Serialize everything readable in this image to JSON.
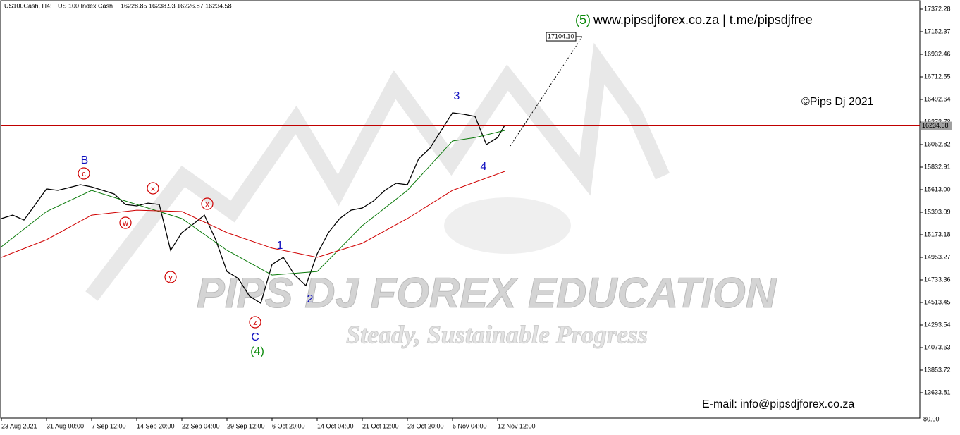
{
  "chart_data": {
    "type": "line",
    "header": {
      "symbol": "US100Cash, H4:",
      "description": "US 100 Index Cash",
      "ohlc": "16228.85 16238.93 16226.87 16234.58"
    },
    "site_prefix": "(5)",
    "site": "www.pipsdjforex.co.za | t.me/pipsdjfree",
    "copyright": "©Pips Dj 2021",
    "email": "E-mail: info@pipsdjforex.co.za",
    "watermark": {
      "title": "PIPS DJ FOREX EDUCATION",
      "slogan": "Steady, Sustainable Progress"
    },
    "indicator_label": "80.00",
    "annotations": [
      "B",
      "c",
      "x",
      "w",
      "y",
      "x",
      "z",
      "C",
      "(4)",
      "1",
      "2",
      "3",
      "4"
    ],
    "current_price": {
      "value": 16234.58,
      "label": "16234.58",
      "color": "#c00000"
    },
    "target": {
      "value": 17104.1,
      "label": "17104.10"
    },
    "series": [
      {
        "color": "#000000",
        "x": [
          0,
          0.25,
          0.5,
          0.75,
          1,
          1.25,
          1.5,
          1.75,
          2,
          2.25,
          2.5,
          2.75,
          3,
          3.25,
          3.5,
          3.75,
          4,
          4.25,
          4.5,
          4.75,
          5,
          5.25,
          5.5,
          5.75,
          6,
          6.25,
          6.5,
          6.75,
          7,
          7.25,
          7.5,
          7.75,
          8,
          8.25,
          8.5,
          8.75,
          9,
          9.25,
          9.5,
          9.75,
          10,
          10.25,
          10.5,
          10.75,
          11,
          11.15
        ],
        "values": [
          15331,
          15365,
          15317,
          15468,
          15620,
          15606,
          15633,
          15661,
          15640,
          15606,
          15571,
          15468,
          15455,
          15482,
          15468,
          15022,
          15194,
          15276,
          15365,
          15125,
          14815,
          14747,
          14575,
          14506,
          14884,
          14953,
          14781,
          14678,
          14987,
          15194,
          15331,
          15413,
          15434,
          15503,
          15606,
          15675,
          15661,
          15915,
          16018,
          16190,
          16362,
          16348,
          16327,
          16053,
          16121,
          16234.58
        ]
      },
      {
        "color": "#0a7a0a",
        "x": [
          0,
          1,
          2,
          3,
          4,
          5,
          6,
          7,
          8,
          9,
          10,
          10.5,
          11.16
        ],
        "values": [
          15056,
          15400,
          15606,
          15468,
          15331,
          15022,
          14781,
          14815,
          15262,
          15606,
          16087,
          16121,
          16190
        ]
      },
      {
        "color": "#d00000",
        "x": [
          0,
          1,
          2,
          3,
          4,
          5,
          6,
          7,
          8,
          9,
          10,
          11.16
        ],
        "values": [
          14953,
          15125,
          15365,
          15413,
          15400,
          15194,
          15043,
          14953,
          15091,
          15331,
          15606,
          15792
        ]
      }
    ],
    "xlim": [
      0,
      20.36
    ],
    "ylim": [
      13386.4,
      17461.6
    ],
    "xticks": [
      {
        "value": 0,
        "label": "23 Aug 2021"
      },
      {
        "value": 1,
        "label": "31 Aug 00:00"
      },
      {
        "value": 2,
        "label": "7 Sep 12:00"
      },
      {
        "value": 3,
        "label": "14 Sep 20:00"
      },
      {
        "value": 4,
        "label": "22 Sep 04:00"
      },
      {
        "value": 5,
        "label": "29 Sep 12:00"
      },
      {
        "value": 6,
        "label": "6 Oct 20:00"
      },
      {
        "value": 7,
        "label": "14 Oct 04:00"
      },
      {
        "value": 8,
        "label": "21 Oct 12:00"
      },
      {
        "value": 9,
        "label": "28 Oct 20:00"
      },
      {
        "value": 10,
        "label": "5 Nov 04:00"
      },
      {
        "value": 11,
        "label": "12 Nov 12:00"
      }
    ],
    "yticks": [
      17372.28,
      17152.37,
      16932.46,
      16712.55,
      16492.64,
      16272.73,
      16052.82,
      15832.91,
      {
        "value": 15613,
        "label": "15613.00"
      },
      15393.09,
      15173.18,
      14953.27,
      14733.36,
      14513.45,
      14293.54,
      14073.63,
      13853.72,
      13633.81
    ]
  }
}
